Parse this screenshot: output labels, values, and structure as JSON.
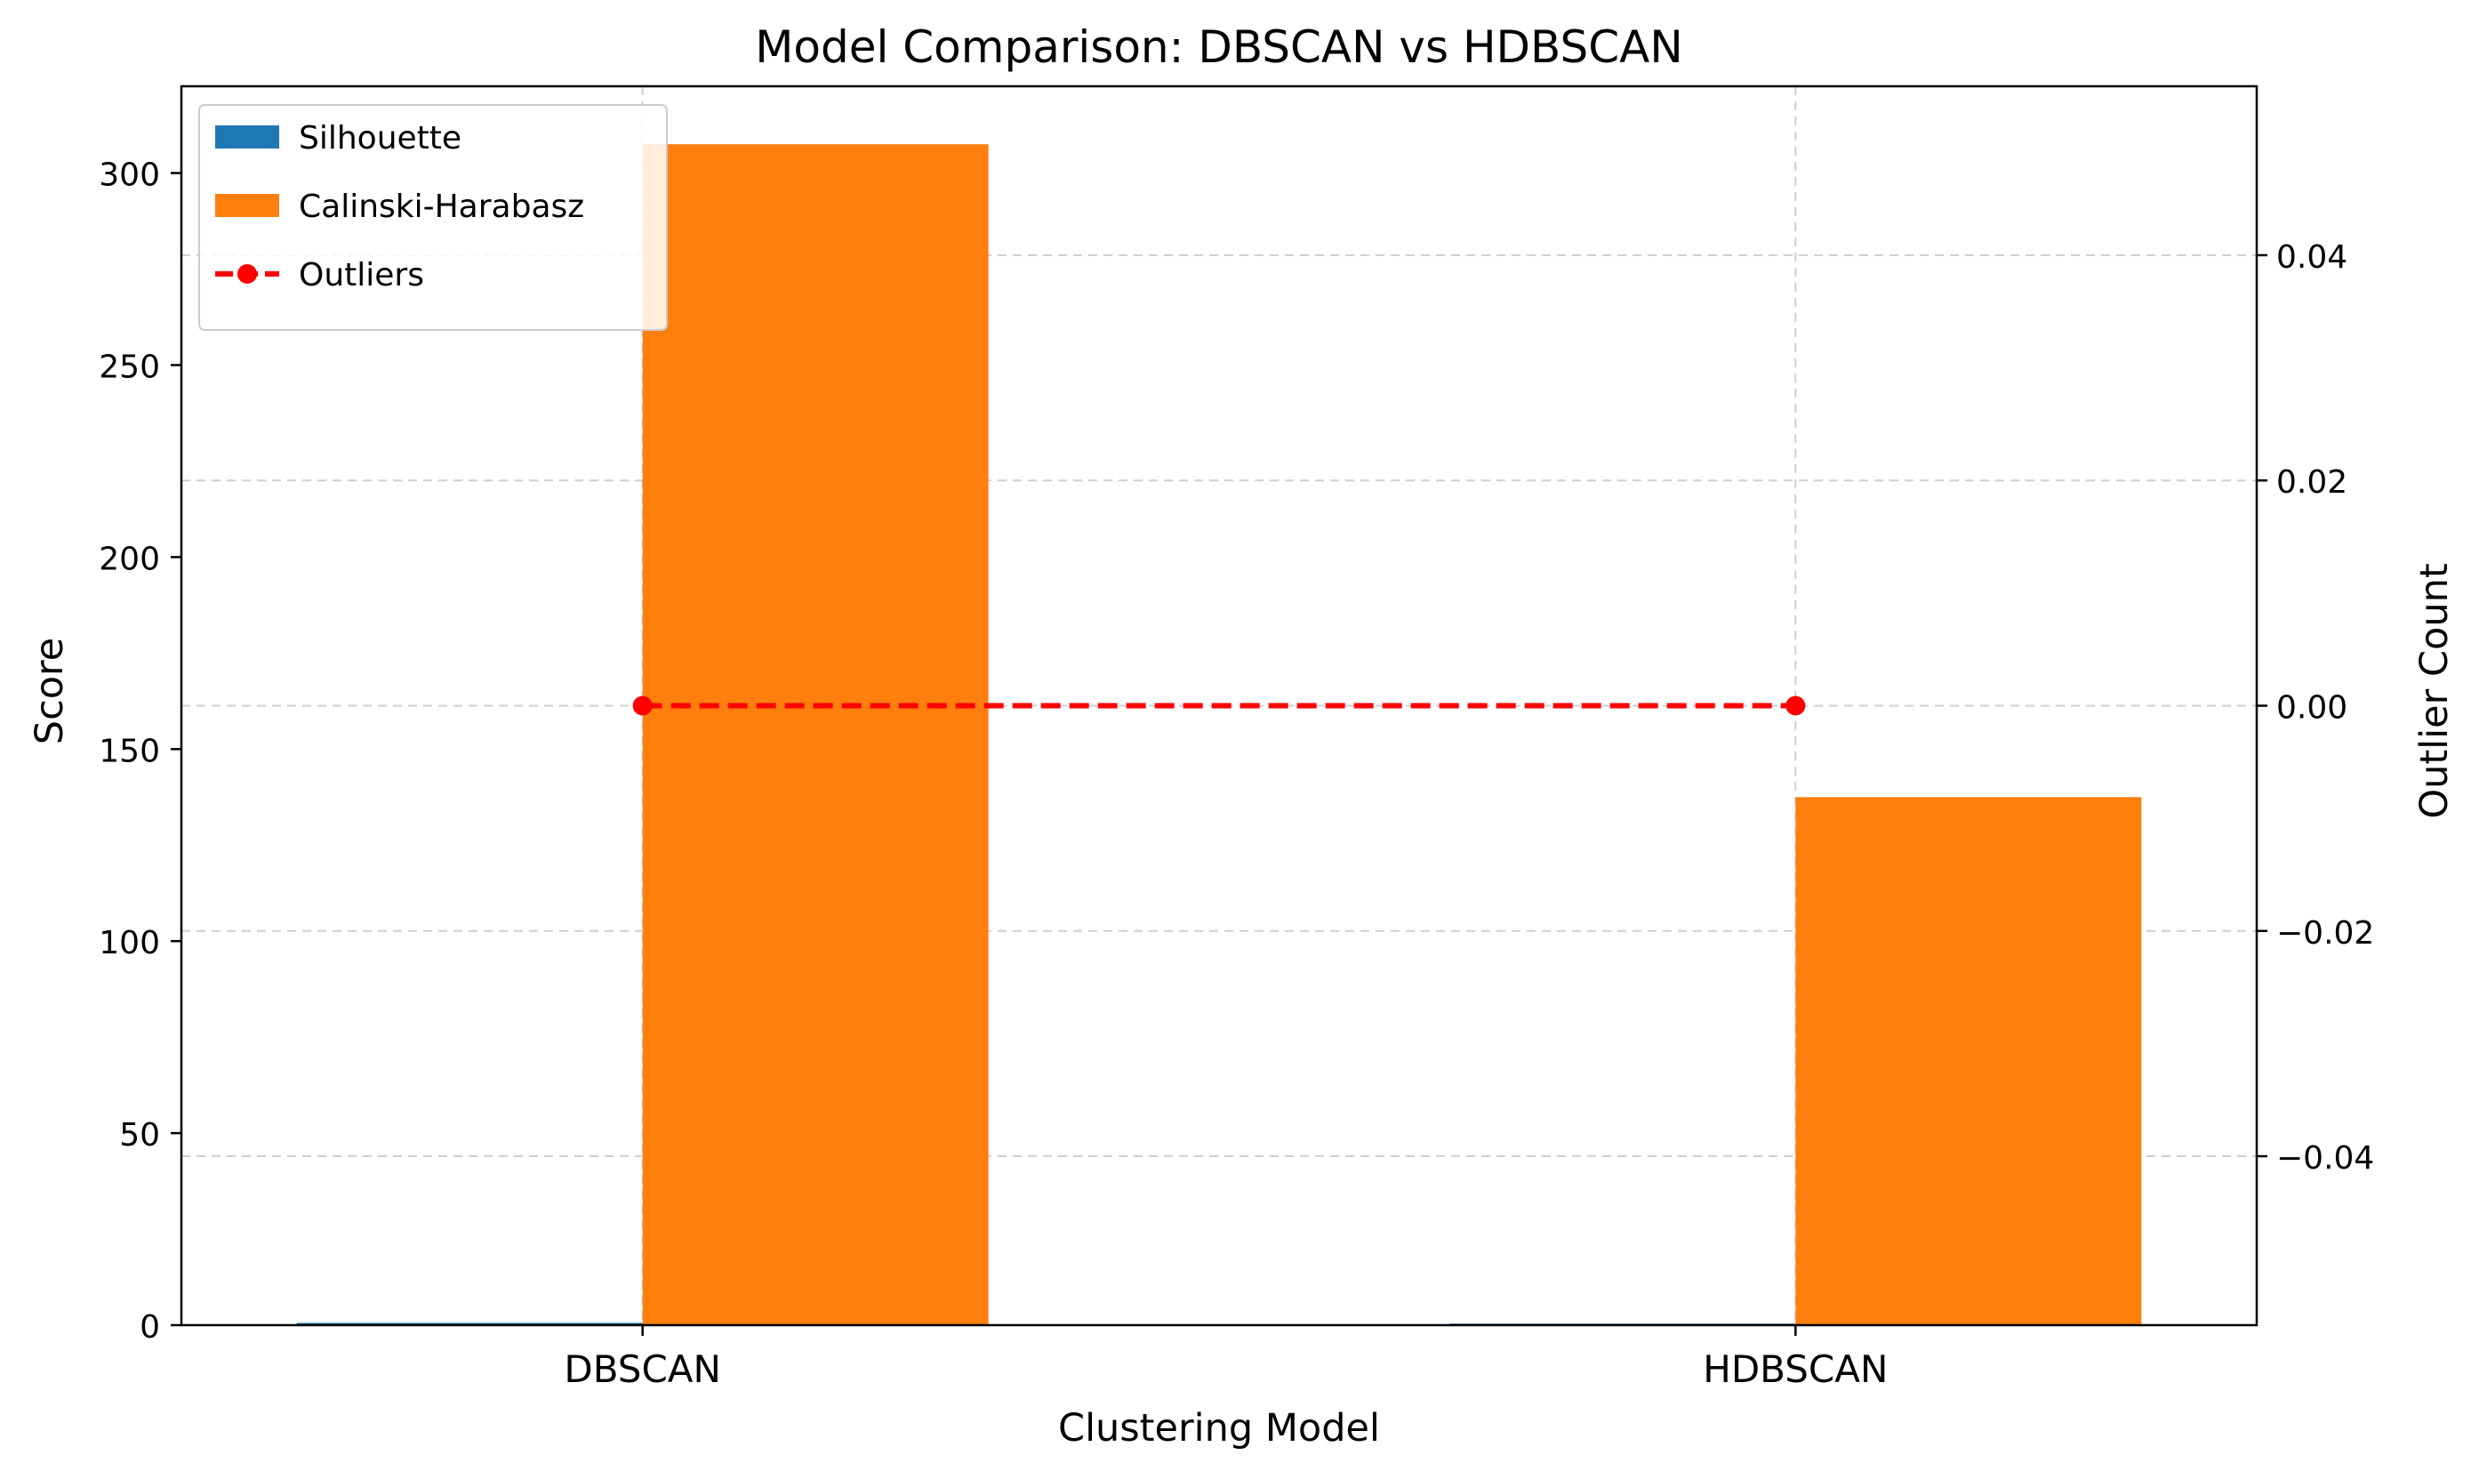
{
  "chart_data": {
    "type": "bar",
    "title": "Model Comparison: DBSCAN vs HDBSCAN",
    "xlabel": "Clustering Model",
    "ylabel": "Score",
    "y2label": "Outlier Count",
    "categories": [
      "DBSCAN",
      "HDBSCAN"
    ],
    "series": [
      {
        "name": "Silhouette",
        "kind": "bar",
        "axis": "left",
        "values": [
          0.6,
          0.4
        ],
        "color": "#1f77b4"
      },
      {
        "name": "Calinski-Harabasz",
        "kind": "bar",
        "axis": "left",
        "values": [
          307.5,
          137.5
        ],
        "color": "#ff7f0e"
      },
      {
        "name": "Outliers",
        "kind": "line",
        "axis": "right",
        "values": [
          0,
          0
        ],
        "color": "#ff0000",
        "linestyle": "dashed",
        "marker": "circle"
      }
    ],
    "ylim": [
      0,
      322.6
    ],
    "yticks": [
      0,
      50,
      100,
      150,
      200,
      250,
      300
    ],
    "ytick_labels": [
      "0",
      "50",
      "100",
      "150",
      "200",
      "250",
      "300"
    ],
    "y2lim": [
      -0.055,
      0.055
    ],
    "y2ticks": [
      -0.04,
      -0.02,
      0.0,
      0.02,
      0.04
    ],
    "y2tick_labels": [
      "−0.04",
      "−0.02",
      "0.00",
      "0.02",
      "0.04"
    ],
    "grid": true,
    "legend_placement": "top-left"
  }
}
